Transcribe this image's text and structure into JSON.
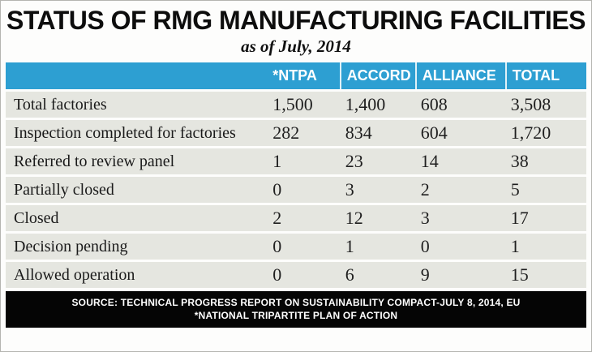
{
  "title": "STATUS OF RMG MANUFACTURING FACILITIES",
  "subtitle": "as of  July, 2014",
  "footer": {
    "line1": "SOURCE: TECHNICAL PROGRESS REPORT ON SUSTAINABILITY COMPACT-JULY 8, 2014, EU",
    "line2": "*NATIONAL TRIPARTITE PLAN OF ACTION"
  },
  "colors": {
    "header_bg": "#2D9FD2",
    "row_bg": "#E5E6E0",
    "footer_bg": "#050505",
    "header_text": "#FFFFFF"
  },
  "chart_data": {
    "type": "table",
    "title": "STATUS OF RMG MANUFACTURING FACILITIES",
    "subtitle": "as of July, 2014",
    "columns": [
      "*NTPA",
      "ACCORD",
      "ALLIANCE",
      "TOTAL"
    ],
    "rows": [
      {
        "label": "Total factories",
        "values": [
          "1,500",
          "1,400",
          "608",
          "3,508"
        ]
      },
      {
        "label": "Inspection completed for factories",
        "values": [
          "282",
          "834",
          "604",
          "1,720"
        ]
      },
      {
        "label": "Referred to review panel",
        "values": [
          "1",
          "23",
          "14",
          "38"
        ]
      },
      {
        "label": "Partially closed",
        "values": [
          "0",
          "3",
          "2",
          "5"
        ]
      },
      {
        "label": "Closed",
        "values": [
          "2",
          "12",
          "3",
          "17"
        ]
      },
      {
        "label": "Decision pending",
        "values": [
          "0",
          "1",
          "0",
          "1"
        ]
      },
      {
        "label": "Allowed operation",
        "values": [
          "0",
          "6",
          "9",
          "15"
        ]
      }
    ],
    "source": "TECHNICAL PROGRESS REPORT ON SUSTAINABILITY COMPACT-JULY 8, 2014, EU",
    "note": "*NATIONAL TRIPARTITE PLAN OF ACTION",
    "legend_position": "none",
    "grid": false
  }
}
